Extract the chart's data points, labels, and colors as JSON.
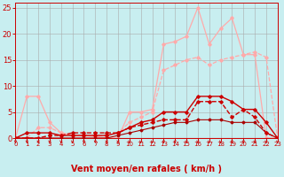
{
  "background_color": "#c8eef0",
  "grid_color": "#aaaaaa",
  "xlabel": "Vent moyen/en rafales ( km/h )",
  "xlabel_color": "#cc0000",
  "xlabel_fontsize": 7,
  "tick_color": "#cc0000",
  "xlim": [
    0,
    23
  ],
  "ylim": [
    0,
    26
  ],
  "yticks": [
    0,
    5,
    10,
    15,
    20,
    25
  ],
  "xticks": [
    0,
    1,
    2,
    3,
    4,
    5,
    6,
    7,
    8,
    9,
    10,
    11,
    12,
    13,
    14,
    15,
    16,
    17,
    18,
    19,
    20,
    21,
    22,
    23
  ],
  "series": [
    {
      "x": [
        0,
        1,
        2,
        3,
        4,
        5,
        6,
        7,
        8,
        9,
        10,
        11,
        12,
        13,
        14,
        15,
        16,
        17,
        18,
        19,
        20,
        21,
        22,
        23
      ],
      "y": [
        0,
        8,
        8,
        3,
        1,
        0.5,
        0.5,
        0.3,
        0,
        0,
        5,
        5,
        5.5,
        18,
        18.5,
        19.5,
        25,
        18,
        21,
        23,
        16,
        16,
        0,
        0
      ],
      "color": "#ffaaaa",
      "linewidth": 0.9,
      "marker": "D",
      "markersize": 1.8,
      "linestyle": "-",
      "zorder": 2
    },
    {
      "x": [
        0,
        1,
        2,
        3,
        4,
        5,
        6,
        7,
        8,
        9,
        10,
        11,
        12,
        13,
        14,
        15,
        16,
        17,
        18,
        19,
        20,
        21,
        22,
        23
      ],
      "y": [
        0,
        0,
        2,
        2,
        1,
        0.5,
        0.5,
        0.5,
        0.5,
        1,
        3,
        4,
        5,
        13,
        14,
        15,
        15.5,
        14,
        15,
        15.5,
        16,
        16.5,
        15.5,
        0
      ],
      "color": "#ffaaaa",
      "linewidth": 0.9,
      "marker": "D",
      "markersize": 1.8,
      "linestyle": "--",
      "zorder": 2
    },
    {
      "x": [
        0,
        1,
        2,
        3,
        4,
        5,
        6,
        7,
        8,
        9,
        10,
        11,
        12,
        13,
        14,
        15,
        16,
        17,
        18,
        19,
        20,
        21,
        22,
        23
      ],
      "y": [
        0,
        1,
        1,
        1,
        0.5,
        0.5,
        0.5,
        0.5,
        0.5,
        1,
        2,
        3,
        3.5,
        5,
        5,
        5,
        8,
        8,
        8,
        7,
        5.5,
        5.5,
        3,
        0
      ],
      "color": "#cc0000",
      "linewidth": 1.0,
      "marker": "D",
      "markersize": 1.8,
      "linestyle": "-",
      "zorder": 4
    },
    {
      "x": [
        0,
        1,
        2,
        3,
        4,
        5,
        6,
        7,
        8,
        9,
        10,
        11,
        12,
        13,
        14,
        15,
        16,
        17,
        18,
        19,
        20,
        21,
        22,
        23
      ],
      "y": [
        0,
        0,
        0,
        0.5,
        0.5,
        1,
        1,
        1,
        1,
        1,
        2,
        2.5,
        3,
        3.5,
        3.5,
        3.5,
        7,
        7,
        7,
        4,
        5.5,
        4,
        1,
        0
      ],
      "color": "#cc0000",
      "linewidth": 1.0,
      "marker": "D",
      "markersize": 1.8,
      "linestyle": "--",
      "zorder": 4
    },
    {
      "x": [
        0,
        1,
        2,
        3,
        4,
        5,
        6,
        7,
        8,
        9,
        10,
        11,
        12,
        13,
        14,
        15,
        16,
        17,
        18,
        19,
        20,
        21,
        22,
        23
      ],
      "y": [
        0,
        0,
        0,
        0,
        0,
        0,
        0,
        0,
        0,
        0.5,
        1,
        1.5,
        2,
        2.5,
        3,
        3,
        3.5,
        3.5,
        3.5,
        3,
        3,
        3,
        1,
        0
      ],
      "color": "#aa0000",
      "linewidth": 0.8,
      "marker": "D",
      "markersize": 1.5,
      "linestyle": "-",
      "zorder": 3
    }
  ]
}
